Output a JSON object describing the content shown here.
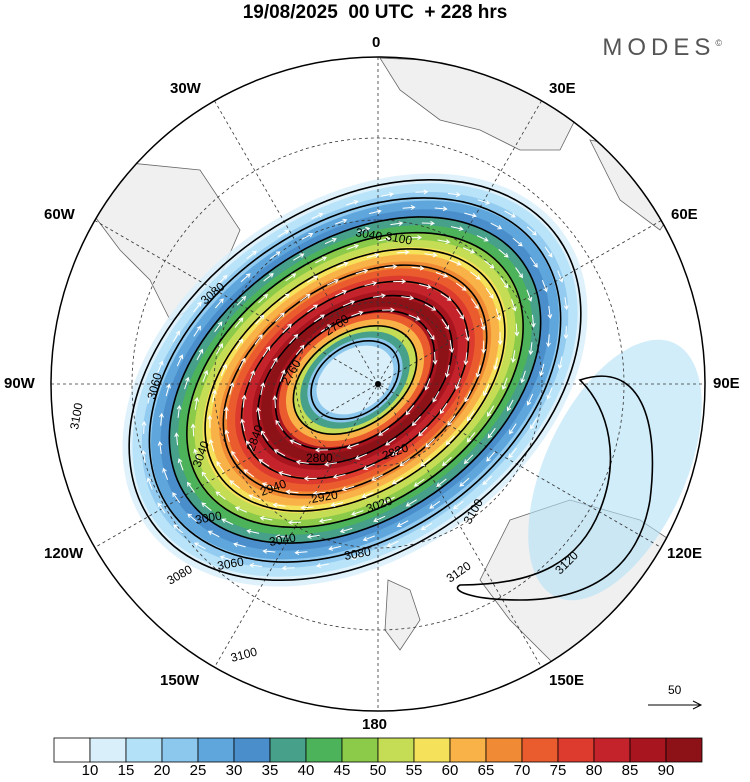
{
  "title": "19/08/2025  00 UTC  + 228 hrs",
  "brand": "MODES",
  "brand_mark": "©",
  "longitude_labels": {
    "lon_0": "0",
    "lon_30e": "30E",
    "lon_60e": "60E",
    "lon_90e": "90E",
    "lon_120e": "120E",
    "lon_150e": "150E",
    "lon_180": "180",
    "lon_150w": "150W",
    "lon_120w": "120W",
    "lon_90w": "90W",
    "lon_60w": "60W",
    "lon_30w": "30W"
  },
  "contour_labels": [
    "2760",
    "2760",
    "2800",
    "2820",
    "2840",
    "2920",
    "2940",
    "3000",
    "3020",
    "3040",
    "3040",
    "3040",
    "3060",
    "3060",
    "3080",
    "3080",
    "3080",
    "3100",
    "3100",
    "3100",
    "3100",
    "3120",
    "3120"
  ],
  "colorbar": {
    "ticks": [
      "10",
      "15",
      "20",
      "25",
      "30",
      "35",
      "40",
      "45",
      "50",
      "55",
      "60",
      "65",
      "70",
      "75",
      "80",
      "85",
      "90"
    ],
    "colors": [
      "#ffffff",
      "#d9f0fb",
      "#b3e1f7",
      "#8cc8ee",
      "#5fa6dc",
      "#4a8fcb",
      "#47a08a",
      "#4cb35a",
      "#8cca4a",
      "#c4dd55",
      "#f6e15a",
      "#f8b247",
      "#f08a34",
      "#ea5c2e",
      "#dc3b2d",
      "#c4232b",
      "#a8151f",
      "#8d1218"
    ]
  },
  "reference_vector": {
    "label": "50"
  },
  "colors": {
    "land": "#f0f0f0",
    "coast": "#666666",
    "contour": "#000000",
    "arrows": "#ffffff"
  }
}
